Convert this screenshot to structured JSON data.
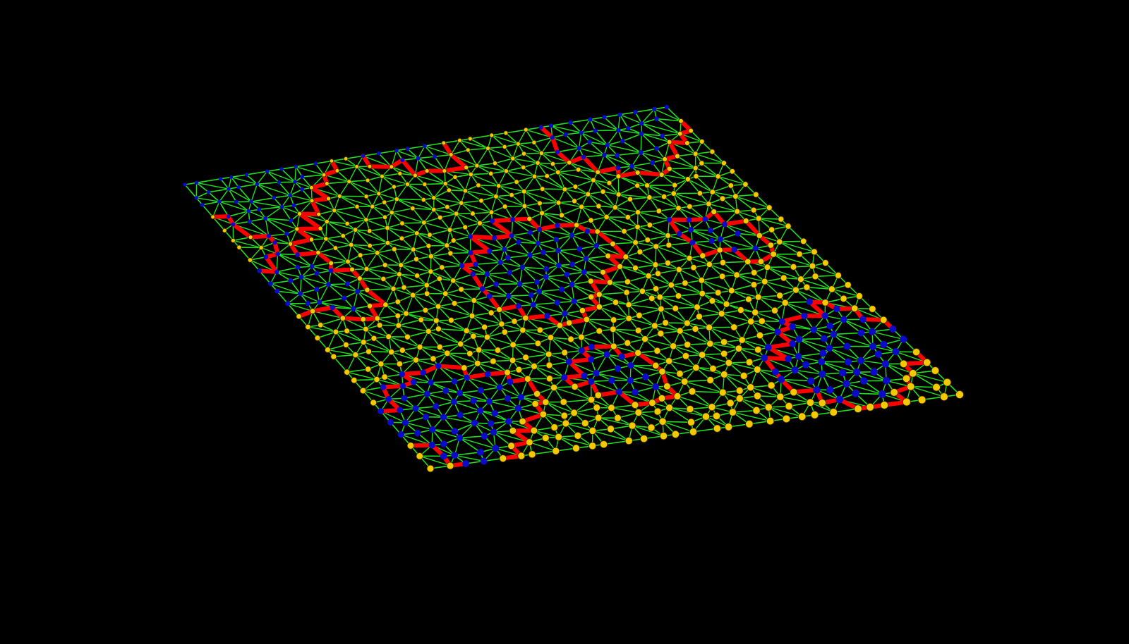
{
  "scene": {
    "type": "3d-mesh-network-render",
    "colors": {
      "background": "#000000",
      "edge": "#1fe01f",
      "boundary_edge": "#ff0000",
      "node_primary": "#f5c800",
      "node_secondary": "#0a0ac8",
      "node_outline": "#3a2a00"
    }
  }
}
